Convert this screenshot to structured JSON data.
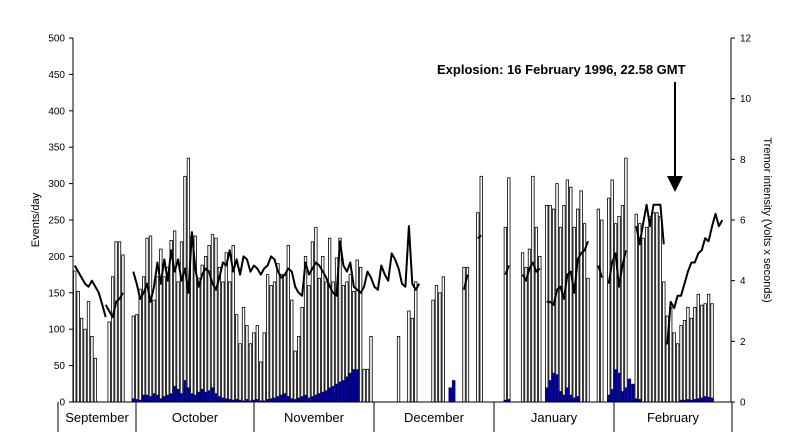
{
  "chart_data": {
    "type": "bar",
    "title": "",
    "ylabel": "Events/day",
    "y2label": "Tremor intensity (Volts x seconds)",
    "ylim": [
      0,
      500
    ],
    "y2lim": [
      0,
      12
    ],
    "yticks": [
      "0",
      "50",
      "100",
      "150",
      "200",
      "250",
      "300",
      "350",
      "400",
      "450",
      "500"
    ],
    "y2ticks": [
      "0",
      "2",
      "4",
      "6",
      "8",
      "10",
      "12"
    ],
    "months": [
      "September",
      "October",
      "November",
      "December",
      "January",
      "February"
    ],
    "annotation": "Explosion: 16 February 1996, 22.58 GMT",
    "colors": {
      "total_bars": "#ffffff",
      "bar_outline": "#000000",
      "dark_bars": "#00008b",
      "tremor_line": "#000000"
    },
    "series": [
      {
        "kind": "bar",
        "style": "white",
        "segments": [
          {
            "start": 0,
            "values": [
              180,
              152,
              115,
              100,
              138,
              90,
              60
            ]
          },
          {
            "start": 10,
            "values": [
              110,
              172,
              220,
              220,
              202
            ]
          },
          {
            "start": 17,
            "values": [
              118,
              120,
              155,
              172,
              225,
              228,
              140,
              172,
              210,
              172,
              185,
              222,
              235,
              165,
              220,
              310,
              335,
              228,
              228,
              170,
              188,
              200,
              215,
              230,
              225,
              185,
              165,
              205,
              165,
              215,
              120,
              80,
              130,
              105,
              80,
              95,
              105,
              55,
              95,
              175,
              160,
              165,
              190,
              175,
              175,
              215,
              140,
              70,
              90,
              130,
              200,
              160,
              220,
              240,
              170,
              200,
              165,
              225,
              165,
              198,
              225,
              160,
              165,
              175,
              152,
              195,
              185,
              45,
              45,
              90
            ]
          },
          {
            "start": 94,
            "values": [
              90
            ]
          },
          {
            "start": 97,
            "values": [
              125,
              115,
              165
            ]
          },
          {
            "start": 104,
            "values": [
              140,
              160,
              150,
              172
            ]
          },
          {
            "start": 113,
            "values": [
              185,
              185
            ]
          },
          {
            "start": 117,
            "values": [
              260,
              310
            ]
          },
          {
            "start": 125,
            "values": [
              240,
              308
            ]
          },
          {
            "start": 130,
            "values": [
              205,
              185,
              210,
              310,
              240,
              200
            ]
          },
          {
            "start": 137,
            "values": [
              270,
              270,
              265,
              300,
              240,
              270,
              305,
              295,
              240,
              265,
              290,
              245,
              170
            ]
          },
          {
            "start": 152,
            "values": [
              265,
              250
            ]
          },
          {
            "start": 155,
            "values": [
              280,
              305,
              245,
              255,
              270,
              335
            ]
          },
          {
            "start": 163,
            "values": [
              258,
              245,
              225,
              240,
              255,
              260,
              260,
              255,
              165
            ]
          },
          {
            "start": 172,
            "values": [
              118,
              130,
              95,
              80,
              105,
              112,
              130,
              115,
              130,
              148,
              133,
              135,
              148,
              135
            ]
          }
        ]
      },
      {
        "kind": "bar",
        "style": "dark",
        "segments": [
          {
            "start": 17,
            "values": [
              5,
              4,
              3,
              10,
              10,
              8,
              12,
              10,
              5,
              8,
              10,
              12,
              22,
              18,
              12,
              30,
              20,
              12,
              10,
              14,
              18,
              14,
              16,
              20,
              12,
              8,
              6,
              5,
              4,
              3,
              4,
              3,
              2,
              4,
              2,
              3,
              4,
              2,
              2,
              4,
              5,
              6,
              8,
              10,
              12,
              8,
              5,
              4,
              6,
              8,
              10,
              6,
              8,
              10,
              12,
              14,
              16,
              20,
              22,
              25,
              28,
              30,
              35,
              40,
              45,
              45
            ]
          },
          {
            "start": 109,
            "values": [
              20,
              30
            ]
          },
          {
            "start": 125,
            "values": [
              3,
              4
            ]
          },
          {
            "start": 137,
            "values": [
              20,
              30,
              40,
              38,
              15,
              10,
              20,
              10,
              6,
              8
            ]
          },
          {
            "start": 155,
            "values": [
              10,
              18,
              45,
              40,
              15,
              20,
              32,
              25
            ]
          },
          {
            "start": 163,
            "values": [
              5,
              4
            ]
          },
          {
            "start": 176,
            "values": [
              3,
              3,
              4,
              3,
              4,
              5,
              6,
              8,
              7,
              6
            ]
          }
        ]
      },
      {
        "kind": "line",
        "axis": "right",
        "segments": [
          {
            "start": 0,
            "values": [
              4.5,
              4.3,
              4.1,
              3.9,
              3.8,
              4.0,
              3.8,
              3.6,
              3.2,
              2.8
            ]
          },
          {
            "start": 9,
            "values": [
              3.2,
              3.0,
              2.8,
              3.3,
              3.4,
              3.6
            ]
          },
          {
            "start": 17,
            "values": [
              4.3,
              3.9,
              3.4,
              3.6,
              3.9,
              3.3,
              3.8,
              4.6,
              3.9,
              4.7,
              4.0,
              5.0,
              4.3,
              4.7,
              4.0,
              4.4,
              3.6,
              5.6,
              4.4,
              3.8,
              4.2,
              4.4,
              4.3,
              3.9,
              3.7,
              4.1,
              4.6,
              4.5,
              5.0,
              4.3,
              4.7,
              4.2,
              4.8,
              4.7,
              4.3,
              4.5,
              4.4,
              4.2,
              4.4,
              4.5,
              4.8,
              4.7,
              4.3,
              4.1,
              4.2,
              4.4,
              4.3,
              3.8,
              3.6,
              3.5,
              4.6,
              4.2,
              4.4,
              4.6,
              4.5,
              4.3,
              4.1,
              3.8,
              3.6,
              3.5,
              5.3,
              4.5,
              4.3,
              4.6,
              3.8,
              3.7,
              3.6,
              3.8,
              4.3,
              4.1,
              3.8,
              3.7,
              4.5,
              4.2,
              4.0,
              4.9,
              4.7,
              4.4,
              3.9,
              3.8,
              5.8,
              3.9,
              3.7,
              3.9
            ]
          },
          {
            "start": 113,
            "values": [
              3.7,
              4.2
            ]
          },
          {
            "start": 117,
            "values": [
              5.4,
              5.5
            ]
          },
          {
            "start": 125,
            "values": [
              4.2,
              4.5
            ]
          },
          {
            "start": 130,
            "values": [
              4.2,
              4.0,
              4.4,
              4.6,
              4.3,
              4.4
            ]
          },
          {
            "start": 137,
            "values": [
              3.3,
              3.3,
              3.2,
              3.7,
              3.8,
              3.4,
              4.2,
              4.3,
              3.6,
              4.7,
              4.9,
              5.0,
              5.3
            ]
          },
          {
            "start": 152,
            "values": [
              4.5,
              4.1
            ]
          },
          {
            "start": 155,
            "values": [
              3.9,
              4.6,
              4.9,
              3.8,
              4.5,
              5.0
            ]
          },
          {
            "start": 163,
            "values": [
              5.8,
              5.2,
              5.9,
              6.5,
              5.8,
              6.5,
              6.5,
              6.5,
              5.2
            ]
          },
          {
            "start": 172,
            "values": [
              1.9,
              3.3,
              3.1,
              3.5,
              3.5,
              3.9,
              4.3,
              4.6,
              4.6,
              4.9,
              5.0,
              5.4,
              5.3,
              5.8,
              6.2,
              5.8,
              6.0
            ]
          }
        ]
      }
    ]
  }
}
